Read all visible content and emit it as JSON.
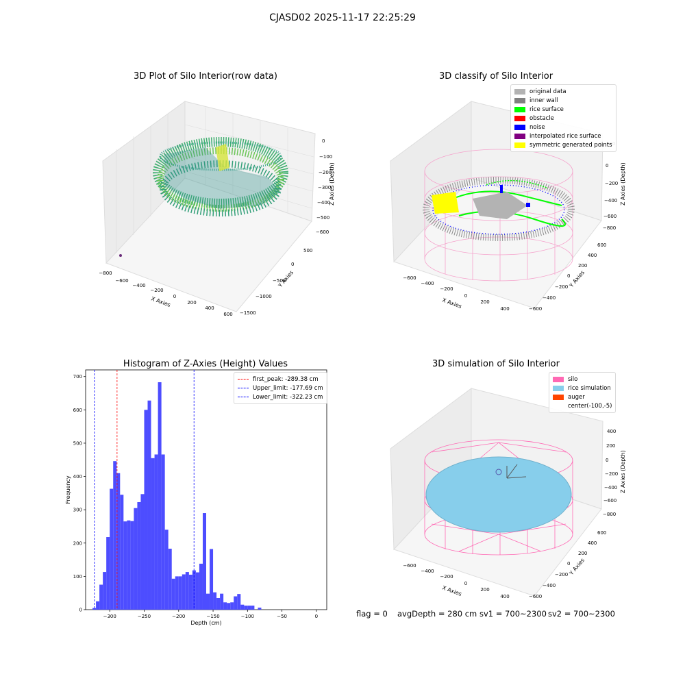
{
  "suptitle": "CJASD02 2025-11-17 22:25:29",
  "panels": {
    "raw": {
      "title": "3D Plot of Silo Interior(row data)",
      "xlabel": "X Axies",
      "ylabel": "Y Axies",
      "zlabel": "Z Axies (Depth)",
      "xticks": [
        "−800",
        "−600",
        "−400",
        "−200",
        "0",
        "200",
        "400",
        "600"
      ],
      "yticks": [
        "500",
        "0",
        "−500",
        "−1000",
        "−1500"
      ],
      "zticks": [
        "0",
        "−100",
        "−200",
        "−300",
        "−400",
        "−500",
        "−600"
      ]
    },
    "classify": {
      "title": "3D classify of Silo Interior",
      "xlabel": "X Axies",
      "ylabel": "Y Axies",
      "zlabel": "Z Axies (Depth)",
      "xticks": [
        "−600",
        "−400",
        "−200",
        "0",
        "200",
        "400"
      ],
      "yticks": [
        "600",
        "400",
        "200",
        "0",
        "−200",
        "−400",
        "−600"
      ],
      "zticks": [
        "200",
        "0",
        "−200",
        "−400",
        "−600",
        "−800"
      ],
      "legend": [
        {
          "label": "original data",
          "color": "#b3b3b3"
        },
        {
          "label": "inner wall",
          "color": "#808080"
        },
        {
          "label": "rice surface",
          "color": "#00ff00"
        },
        {
          "label": "obstacle",
          "color": "#ff0000"
        },
        {
          "label": "noise",
          "color": "#0000ff"
        },
        {
          "label": "interpolated rice surface",
          "color": "#800080"
        },
        {
          "label": "symmetric generated points",
          "color": "#ffff00"
        }
      ]
    },
    "simulation": {
      "title": "3D simulation of Silo Interior",
      "xlabel": "X Axies",
      "ylabel": "Y Axies",
      "zlabel": "Z Axies (Depth)",
      "xticks": [
        "−600",
        "−400",
        "−200",
        "0",
        "200",
        "400"
      ],
      "yticks": [
        "600",
        "400",
        "200",
        "0",
        "−200",
        "−400",
        "−600"
      ],
      "zticks": [
        "400",
        "200",
        "0",
        "−200",
        "−400",
        "−600",
        "−800"
      ],
      "legend": [
        {
          "label": "silo",
          "color": "#ff69b4"
        },
        {
          "label": "rice simulation",
          "color": "#87ceeb"
        },
        {
          "label": "auger",
          "color": "#ff4500"
        },
        {
          "label": "center(-100,-5)",
          "color": ""
        }
      ]
    }
  },
  "chart_data": {
    "type": "bar",
    "title": "Histogram of Z-Axies (Height) Values",
    "xlabel": "Depth (cm)",
    "ylabel": "Frequency",
    "xlim": [
      -335,
      15
    ],
    "ylim": [
      0,
      720
    ],
    "bin_width": 5,
    "xticks": [
      -300,
      -250,
      -200,
      -150,
      -100,
      -50,
      0
    ],
    "yticks": [
      0,
      100,
      200,
      300,
      400,
      500,
      600,
      700
    ],
    "bar_color": "#4d4dff",
    "bins": [
      {
        "x": -325,
        "y": 5
      },
      {
        "x": -320,
        "y": 25
      },
      {
        "x": -315,
        "y": 75
      },
      {
        "x": -310,
        "y": 113
      },
      {
        "x": -305,
        "y": 218
      },
      {
        "x": -300,
        "y": 363
      },
      {
        "x": -295,
        "y": 446
      },
      {
        "x": -290,
        "y": 410
      },
      {
        "x": -285,
        "y": 345
      },
      {
        "x": -280,
        "y": 265
      },
      {
        "x": -275,
        "y": 268
      },
      {
        "x": -270,
        "y": 266
      },
      {
        "x": -265,
        "y": 305
      },
      {
        "x": -260,
        "y": 323
      },
      {
        "x": -255,
        "y": 347
      },
      {
        "x": -250,
        "y": 600
      },
      {
        "x": -245,
        "y": 628
      },
      {
        "x": -240,
        "y": 455
      },
      {
        "x": -235,
        "y": 466
      },
      {
        "x": -230,
        "y": 683
      },
      {
        "x": -225,
        "y": 466
      },
      {
        "x": -220,
        "y": 240
      },
      {
        "x": -215,
        "y": 183
      },
      {
        "x": -210,
        "y": 93
      },
      {
        "x": -205,
        "y": 100
      },
      {
        "x": -200,
        "y": 100
      },
      {
        "x": -195,
        "y": 106
      },
      {
        "x": -190,
        "y": 113
      },
      {
        "x": -185,
        "y": 105
      },
      {
        "x": -180,
        "y": 118
      },
      {
        "x": -175,
        "y": 112
      },
      {
        "x": -170,
        "y": 138
      },
      {
        "x": -165,
        "y": 290
      },
      {
        "x": -160,
        "y": 48
      },
      {
        "x": -155,
        "y": 182
      },
      {
        "x": -150,
        "y": 52
      },
      {
        "x": -145,
        "y": 35
      },
      {
        "x": -140,
        "y": 48
      },
      {
        "x": -135,
        "y": 22
      },
      {
        "x": -130,
        "y": 20
      },
      {
        "x": -125,
        "y": 22
      },
      {
        "x": -120,
        "y": 40
      },
      {
        "x": -115,
        "y": 47
      },
      {
        "x": -110,
        "y": 15
      },
      {
        "x": -105,
        "y": 12
      },
      {
        "x": -100,
        "y": 12
      },
      {
        "x": -95,
        "y": 12
      },
      {
        "x": -85,
        "y": 6
      }
    ],
    "vlines": [
      {
        "label": "first_peak: -289.38 cm",
        "x": -289.38,
        "color": "#ff0000"
      },
      {
        "label": "Upper_limit: -177.69 cm",
        "x": -177.69,
        "color": "#0000ff"
      },
      {
        "label": "Lower_limit: -322.23 cm",
        "x": -322.23,
        "color": "#0000ff"
      }
    ]
  },
  "status": {
    "flag": "flag = 0",
    "avg_depth": "avgDepth = 280 cm",
    "sv1": "sv1 = 700~2300",
    "sv2": "sv2 = 700~2300"
  }
}
